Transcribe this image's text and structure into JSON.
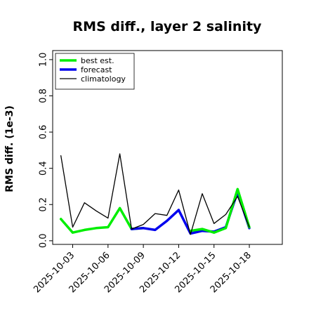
{
  "chart_data": {
    "type": "line",
    "title": "RMS diff., layer 2 salinity",
    "xlabel": "",
    "ylabel": "RMS diff. (1e-3)",
    "ylim": [
      -0.02,
      1.05
    ],
    "yticks": [
      0.0,
      0.2,
      0.4,
      0.6,
      0.8,
      1.0
    ],
    "ytick_labels": [
      "0.0",
      "0.2",
      "0.4",
      "0.6",
      "0.8",
      "1.0"
    ],
    "xlim": [
      -0.7,
      18.8
    ],
    "x_dates": [
      "2025-10-02",
      "2025-10-03",
      "2025-10-04",
      "2025-10-05",
      "2025-10-06",
      "2025-10-07",
      "2025-10-08",
      "2025-10-09",
      "2025-10-10",
      "2025-10-11",
      "2025-10-12",
      "2025-10-13",
      "2025-10-14",
      "2025-10-15",
      "2025-10-16",
      "2025-10-17",
      "2025-10-18"
    ],
    "xticks": [
      {
        "label": "2025-10-03",
        "color": "#000000"
      },
      {
        "label": "2025-10-06",
        "color": "#000000"
      },
      {
        "label": "2025-10-09",
        "color": "#2e8b2e"
      },
      {
        "label": "2025-10-12",
        "color": "#000000"
      },
      {
        "label": "2025-10-15",
        "color": "#000000"
      },
      {
        "label": "2025-10-18",
        "color": "#000000"
      }
    ],
    "legend_position": "upper-left",
    "series": [
      {
        "name": "best est.",
        "color": "#00ee00",
        "linewidth": 3.5,
        "x": [
          "2025-10-02",
          "2025-10-03",
          "2025-10-04",
          "2025-10-05",
          "2025-10-06",
          "2025-10-07",
          "2025-10-08",
          "2025-10-09"
        ],
        "values": [
          0.12,
          0.045,
          0.06,
          0.07,
          0.075,
          0.18,
          0.065,
          0.07
        ]
      },
      {
        "name": "forecast",
        "color": "#0000ee",
        "linewidth": 3.5,
        "x": [
          "2025-10-08",
          "2025-10-09",
          "2025-10-10",
          "2025-10-11",
          "2025-10-12",
          "2025-10-13",
          "2025-10-14",
          "2025-10-15",
          "2025-10-16",
          "2025-10-17",
          "2025-10-18"
        ],
        "values": [
          0.065,
          0.07,
          0.06,
          0.11,
          0.17,
          0.04,
          0.055,
          0.05,
          0.075,
          0.27,
          0.07
        ]
      },
      {
        "name": "",
        "color": "#00ee00",
        "linewidth": 3.5,
        "x": [
          "2025-10-13",
          "2025-10-14",
          "2025-10-15",
          "2025-10-16",
          "2025-10-17",
          "2025-10-18"
        ],
        "values": [
          0.055,
          0.065,
          0.045,
          0.07,
          0.285,
          0.075
        ]
      },
      {
        "name": "climatology",
        "color": "#000000",
        "linewidth": 1.3,
        "x": [
          "2025-10-02",
          "2025-10-03",
          "2025-10-04",
          "2025-10-05",
          "2025-10-06",
          "2025-10-07",
          "2025-10-08",
          "2025-10-09",
          "2025-10-10",
          "2025-10-11",
          "2025-10-12",
          "2025-10-13",
          "2025-10-14",
          "2025-10-15",
          "2025-10-16",
          "2025-10-17",
          "2025-10-18"
        ],
        "values": [
          0.47,
          0.075,
          0.21,
          0.165,
          0.125,
          0.48,
          0.065,
          0.09,
          0.15,
          0.14,
          0.28,
          0.035,
          0.26,
          0.095,
          0.145,
          0.245,
          0.075
        ]
      }
    ]
  }
}
